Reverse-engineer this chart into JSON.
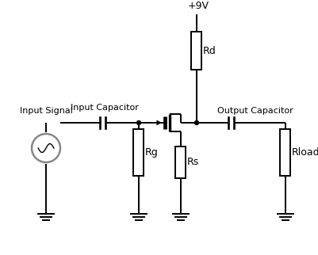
{
  "background_color": "#ffffff",
  "line_color": "#000000",
  "labels": {
    "vcc": "+9V",
    "rd": "Rd",
    "rg": "Rg",
    "rs": "Rs",
    "rload": "Rload",
    "input_cap": "Input Capacitor",
    "output_cap": "Output Capacitor",
    "input_signal": "Input Signal"
  },
  "figsize": [
    4.02,
    3.22
  ],
  "dpi": 100
}
